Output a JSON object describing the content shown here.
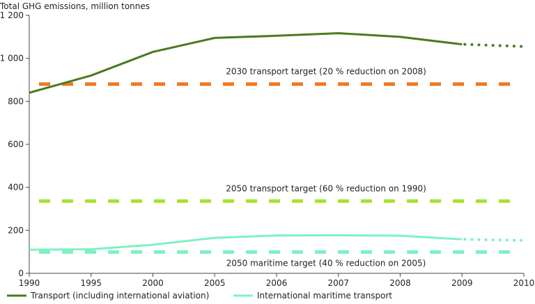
{
  "chart_data": {
    "type": "line",
    "ylabel": "Total GHG emissions, million tonnes",
    "ylim": [
      0,
      1200
    ],
    "yticks": [
      {
        "value": 0,
        "label": "0"
      },
      {
        "value": 200,
        "label": "200"
      },
      {
        "value": 400,
        "label": "400"
      },
      {
        "value": 600,
        "label": "600"
      },
      {
        "value": 800,
        "label": "800"
      },
      {
        "value": 1000,
        "label": "1 000"
      },
      {
        "value": 1200,
        "label": "1 200"
      }
    ],
    "categories": [
      "1990",
      "1995",
      "2000",
      "2005",
      "2006",
      "2007",
      "2008",
      "2009",
      "2010"
    ],
    "grid": false,
    "legend_placement": "bottom",
    "series": [
      {
        "name": "Transport (including international aviation)",
        "color": "#4a7a1e",
        "values": [
          840,
          920,
          1030,
          1095,
          1105,
          1117,
          1100,
          1065,
          1055
        ],
        "dotted_from_index": 7
      },
      {
        "name": "International maritime transport",
        "color": "#7df2c2",
        "values": [
          110,
          112,
          133,
          165,
          176,
          177,
          175,
          158,
          153
        ],
        "dotted_from_index": 7
      }
    ],
    "targets": [
      {
        "label": "2030 transport target (20 % reduction on 2008)",
        "value": 880,
        "color": "#f07821"
      },
      {
        "label": "2050 transport target (60 % reduction on 1990)",
        "value": 336,
        "color": "#a5e22f"
      },
      {
        "label": "2050 maritime target (40 % reduction on 2005)",
        "value": 99,
        "color": "#7df2c2"
      }
    ]
  }
}
